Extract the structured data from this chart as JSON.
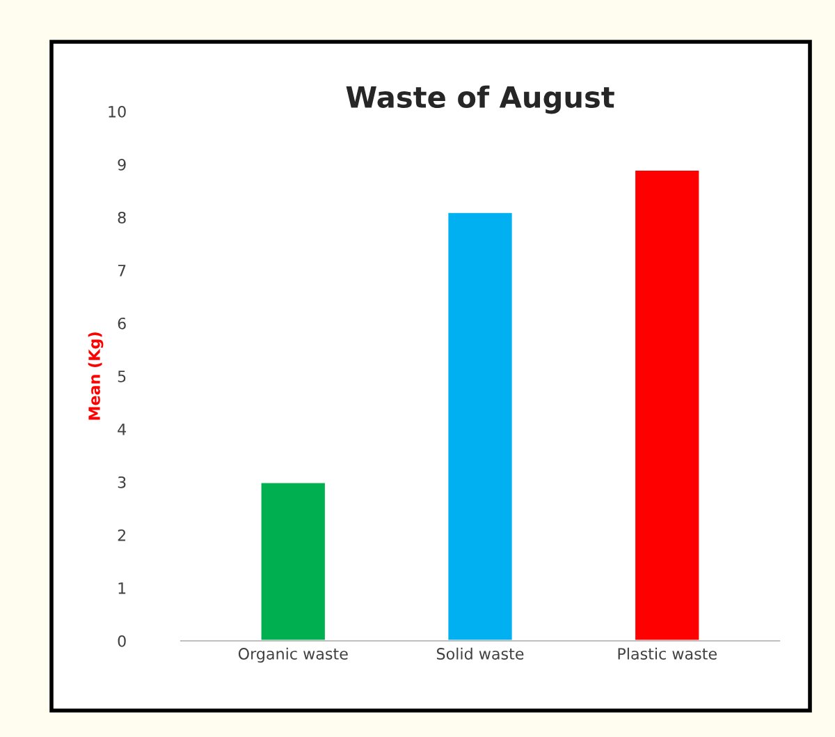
{
  "chart_data": {
    "type": "bar",
    "title": "Waste of August",
    "ylabel": "Mean (Kg)",
    "categories": [
      "Organic waste",
      "Solid waste",
      "Plastic waste"
    ],
    "values": [
      3.0,
      8.1,
      8.9
    ],
    "colors": [
      "#00b050",
      "#00b0f0",
      "#ff0000"
    ],
    "ylim": [
      0,
      10
    ],
    "yticks": [
      0,
      1,
      2,
      3,
      4,
      5,
      6,
      7,
      8,
      9,
      10
    ]
  }
}
